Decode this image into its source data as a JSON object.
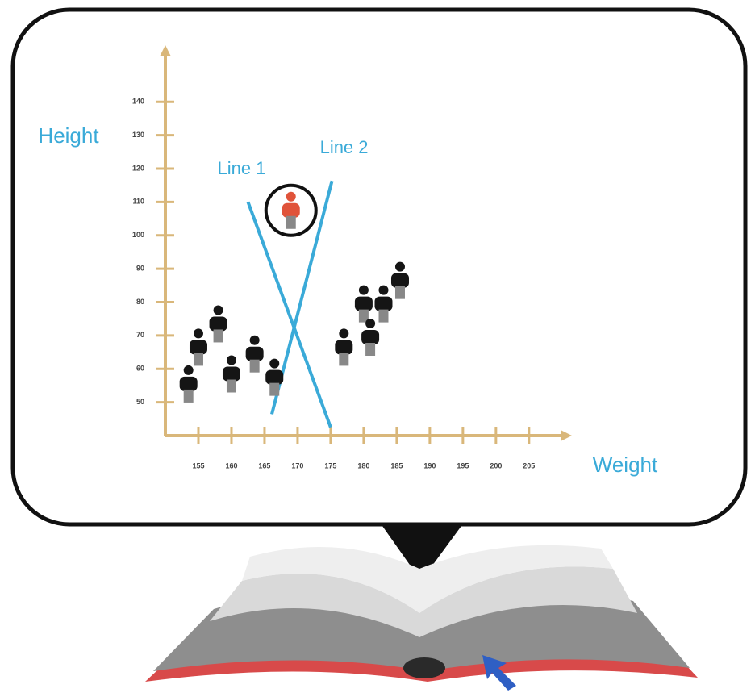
{
  "chart_data": {
    "type": "scatter",
    "y_label": "Height",
    "x_label": "Weight",
    "xlim": [
      150,
      211
    ],
    "ylim": [
      40,
      156
    ],
    "xticks": [
      155,
      160,
      165,
      170,
      175,
      180,
      185,
      190,
      195,
      200,
      205
    ],
    "yticks": [
      50,
      60,
      70,
      80,
      90,
      100,
      110,
      120,
      130,
      140
    ],
    "axis_color": "#d9b77a",
    "series": [
      {
        "color": "#151515",
        "x": [
          153.5,
          155,
          158,
          160,
          163.5,
          166.5,
          177,
          180,
          181,
          183,
          185.5
        ],
        "values": [
          55,
          66,
          73,
          58,
          64,
          57,
          66,
          79,
          69,
          79,
          86
        ]
      },
      {
        "color": "#e0533a",
        "x": [
          169
        ],
        "values": [
          107
        ]
      }
    ],
    "lines": [
      {
        "name": "Line 1",
        "color": "#3aaad8",
        "x": [
          162.5,
          175
        ],
        "values": [
          110,
          42.5
        ]
      },
      {
        "name": "Line 2",
        "color": "#3aaad8",
        "x": [
          175.2,
          166.1
        ],
        "values": [
          116.3,
          46.4
        ]
      }
    ]
  }
}
